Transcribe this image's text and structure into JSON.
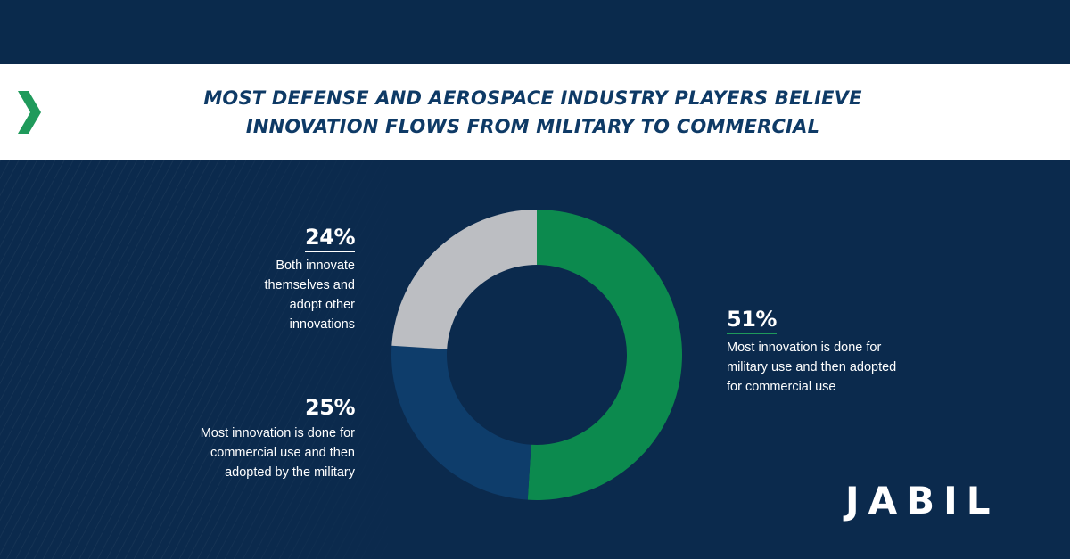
{
  "banner": {
    "title_line1": "MOST DEFENSE AND AEROSPACE INDUSTRY PLAYERS BELIEVE",
    "title_line2": "INNOVATION FLOWS FROM MILITARY TO COMMERCIAL"
  },
  "colors": {
    "background": "#0b2a4d",
    "banner": "#ffffff",
    "title": "#0e3a66",
    "accent_green": "#1f9a5b",
    "slice_military_to_commercial": "#0c8a4e",
    "slice_commercial_to_military": "#0e3d6b",
    "slice_both": "#bcbec2"
  },
  "icons": {
    "banner_chevron": "chevron-right-icon"
  },
  "logo": {
    "text": "JABIL"
  },
  "chart_data": {
    "type": "pie",
    "donut": true,
    "title": "MOST DEFENSE AND AEROSPACE INDUSTRY PLAYERS BELIEVE INNOVATION FLOWS FROM MILITARY TO COMMERCIAL",
    "slices": [
      {
        "label": "Most innovation is done for military use and then adopted for commercial use",
        "value": 51,
        "display": "51%",
        "color": "#0c8a4e"
      },
      {
        "label": "Most innovation is done for commercial use and then adopted by the military",
        "value": 25,
        "display": "25%",
        "color": "#0e3d6b"
      },
      {
        "label": "Both innovate themselves and adopt other innovations",
        "value": 24,
        "display": "24%",
        "color": "#bcbec2"
      }
    ]
  },
  "labels": {
    "both": {
      "pct": "24%",
      "lines": [
        "Both innovate",
        "themselves and",
        "adopt other",
        "innovations"
      ]
    },
    "commercial_first": {
      "pct": "25%",
      "lines": [
        "Most innovation is done for",
        "commercial use and then",
        "adopted by the military"
      ]
    },
    "military_first": {
      "pct": "51%",
      "lines": [
        "Most innovation is done for",
        "military use and then adopted",
        "for commercial use"
      ]
    }
  }
}
